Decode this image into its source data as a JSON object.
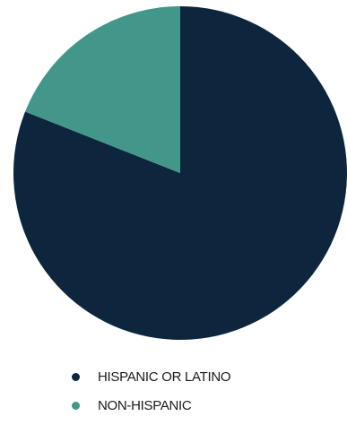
{
  "chart_data": {
    "type": "pie",
    "categories": [
      "HISPANIC OR LATINO",
      "NON-HISPANIC"
    ],
    "values": [
      81,
      19
    ],
    "colors": [
      "#0d263d",
      "#43978a"
    ],
    "legend_position": "bottom",
    "title": ""
  }
}
